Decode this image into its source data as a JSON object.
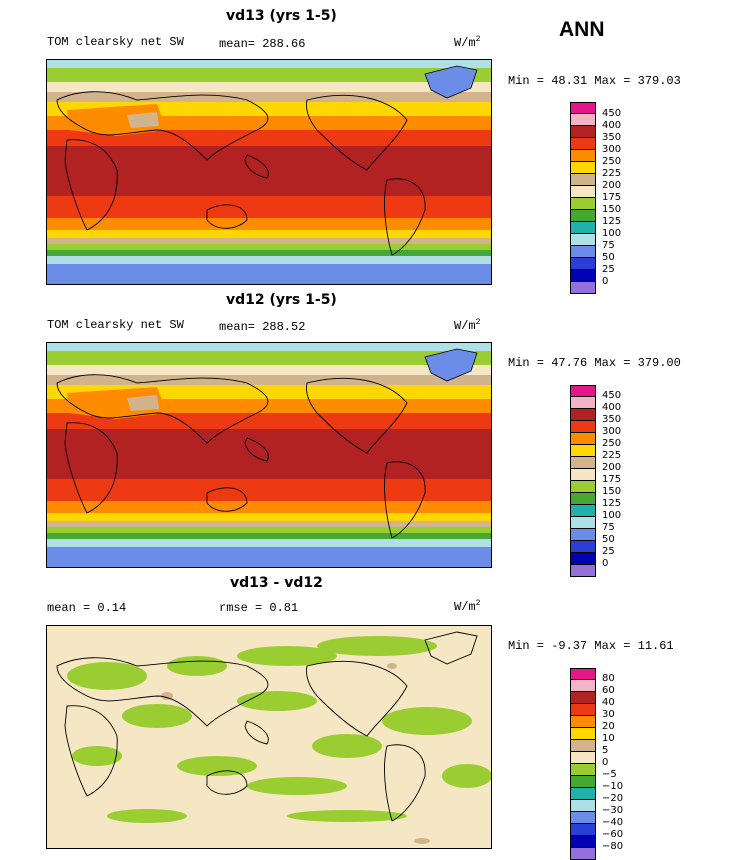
{
  "season": "ANN",
  "panels": [
    {
      "title": "vd13 (yrs 1-5)",
      "left_label": "TOM clearsky net SW",
      "mean_label": "mean= 288.66",
      "units_base": "W/m",
      "units_exp": "2",
      "minmax": "Min =  48.31 Max = 379.03",
      "levels": [
        "450",
        "400",
        "350",
        "300",
        "250",
        "225",
        "200",
        "175",
        "150",
        "125",
        "100",
        "75",
        "50",
        "25",
        "0"
      ]
    },
    {
      "title": "vd12 (yrs 1-5)",
      "left_label": "TOM clearsky net SW",
      "mean_label": "mean= 288.52",
      "units_base": "W/m",
      "units_exp": "2",
      "minmax": "Min =  47.76 Max = 379.00",
      "levels": [
        "450",
        "400",
        "350",
        "300",
        "250",
        "225",
        "200",
        "175",
        "150",
        "125",
        "100",
        "75",
        "50",
        "25",
        "0"
      ]
    },
    {
      "title": "vd13 - vd12",
      "left_label": "mean =   0.14",
      "mean_label": "rmse =   0.81",
      "units_base": "W/m",
      "units_exp": "2",
      "minmax": "Min =  -9.37 Max =  11.61",
      "levels": [
        "80",
        "60",
        "40",
        "30",
        "20",
        "10",
        "5",
        "0",
        "−5",
        "−10",
        "−20",
        "−30",
        "−40",
        "−60",
        "−80"
      ]
    }
  ],
  "colors": {
    "scale": [
      "#e6168a",
      "#f4b3c6",
      "#b22222",
      "#ee3a12",
      "#ff8c00",
      "#ffd700",
      "#d2b48c",
      "#f5e6c4",
      "#9acd32",
      "#44a832",
      "#20b2aa",
      "#afe0e6",
      "#6b8de8",
      "#2a3fd6",
      "#0000b4",
      "#9370db"
    ],
    "diff_scale": [
      "#e6168a",
      "#f4b3c6",
      "#b22222",
      "#ee3a12",
      "#ff8c00",
      "#ffd700",
      "#d2b48c",
      "#f5e6c4",
      "#9acd32",
      "#44a832",
      "#20b2aa",
      "#afe0e6",
      "#6b8de8",
      "#2a3fd6",
      "#0000b4",
      "#9370db"
    ],
    "ocean_diff_bg": "#f5e6c4"
  }
}
